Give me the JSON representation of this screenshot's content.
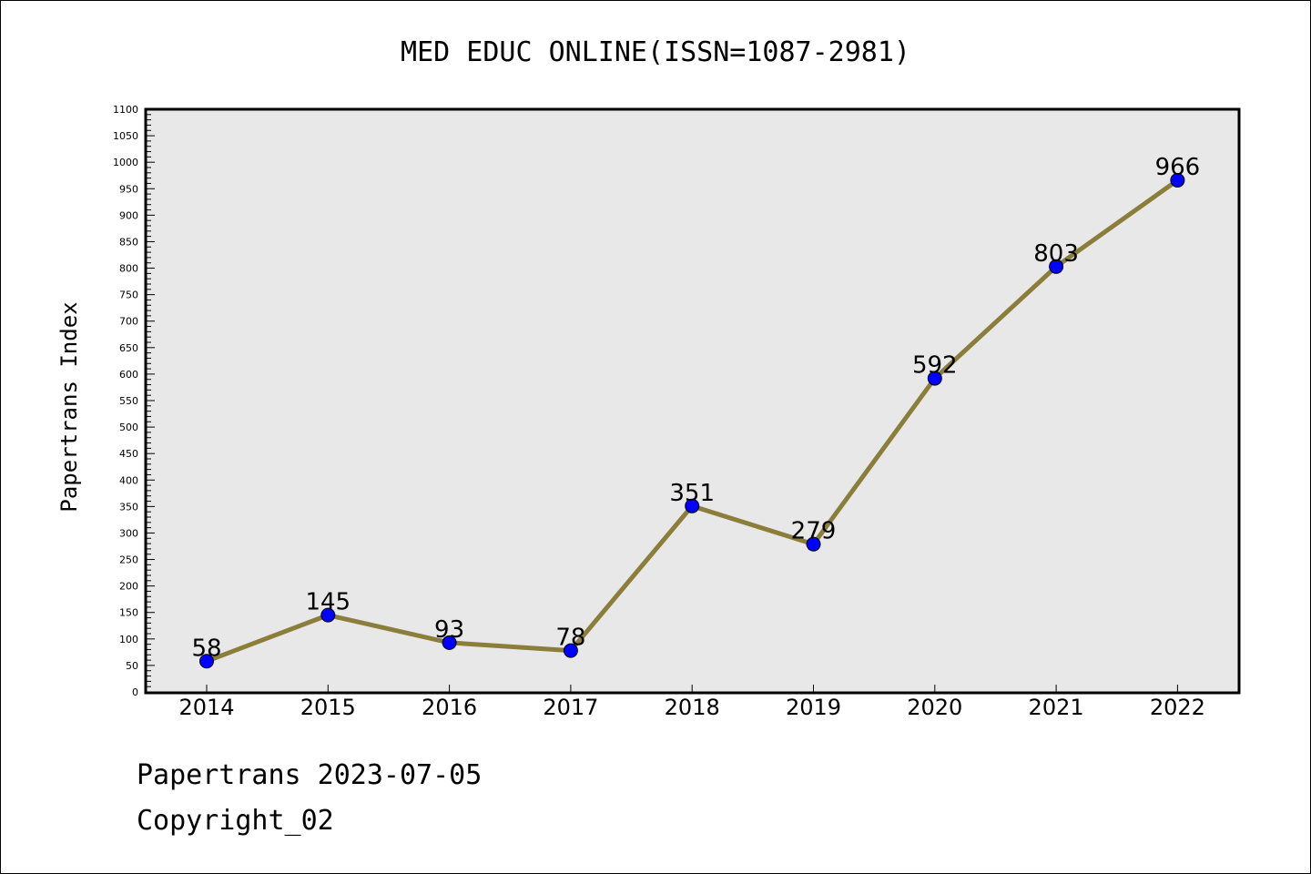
{
  "chart_data": {
    "type": "line",
    "title": "MED EDUC ONLINE(ISSN=1087-2981)",
    "ylabel": "Papertrans Index",
    "xlabel": "",
    "categories": [
      "2014",
      "2015",
      "2016",
      "2017",
      "2018",
      "2019",
      "2020",
      "2021",
      "2022"
    ],
    "values": [
      58,
      145,
      93,
      78,
      351,
      279,
      592,
      803,
      966
    ],
    "data_labels": [
      "58",
      "145",
      "93",
      "78",
      "351",
      "279",
      "592",
      "803",
      "966"
    ],
    "ylim": [
      0,
      1100
    ],
    "yticks": [
      0,
      50,
      100,
      150,
      200,
      250,
      300,
      350,
      400,
      450,
      500,
      550,
      600,
      650,
      700,
      750,
      800,
      850,
      900,
      950,
      1000,
      1050,
      1100
    ],
    "grid": false,
    "legend": "none",
    "colors": {
      "line": "#8b7d3a",
      "marker_fill": "#0000ff",
      "marker_edge": "#000000",
      "plot_background": "#e8e8e8"
    }
  },
  "footer": {
    "line1": "Papertrans 2023-07-05",
    "line2": "Copyright_02"
  }
}
